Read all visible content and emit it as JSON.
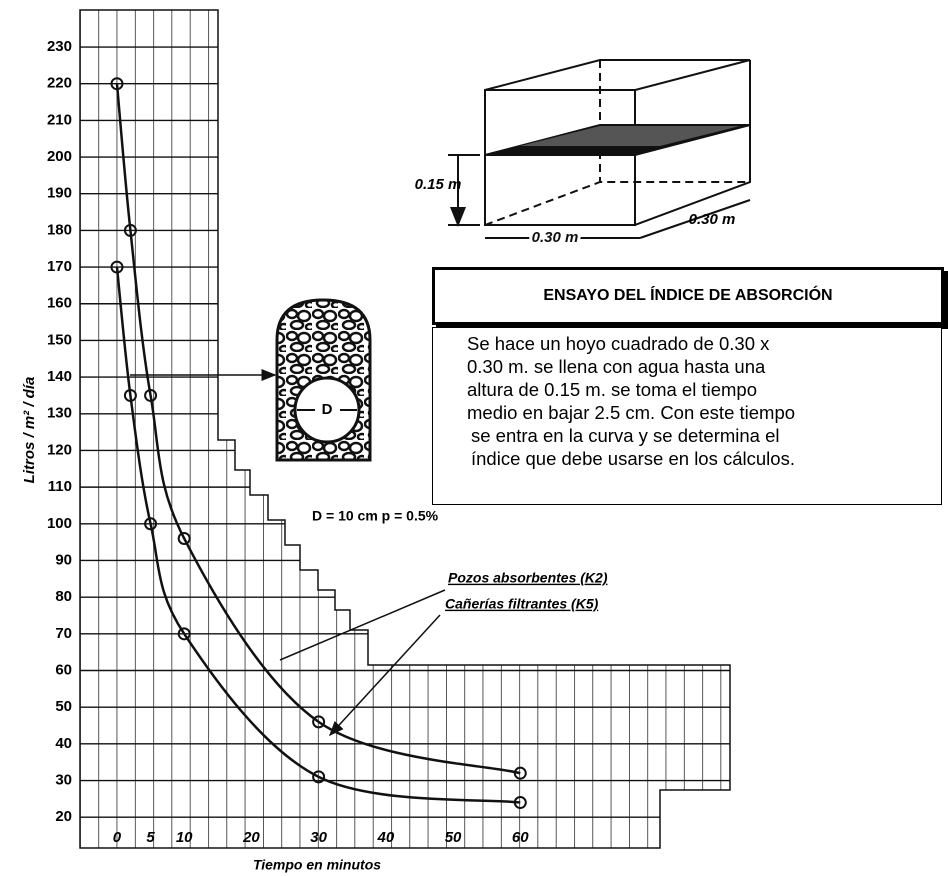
{
  "chart_data": {
    "type": "line",
    "title": "ENSAYO DEL ÍNDICE DE ABSORCIÓN",
    "description": [
      "Se hace un hoyo cuadrado de 0.30 x",
      "0.30 m. se llena con agua hasta una",
      "altura de 0.15 m. se toma el tiempo",
      "medio en bajar 2.5 cm. Con este tiempo",
      "se entra en la curva y se determina el",
      "índice que debe usarse en los cálculos."
    ],
    "x_label": "Tiempo en minutos",
    "y_label": "Litros / m² / día",
    "annotations": {
      "pipe": "D = 10 cm  p = 0.5%",
      "pipe_diameter": "D",
      "height": "0.15 m",
      "width": "0.30 m",
      "depth": "0.30 m"
    },
    "series": [
      {
        "name": "Pozos absorbentes (K2)",
        "color": "#111111",
        "x": [
          0,
          2,
          5,
          10,
          30,
          60
        ],
        "values": [
          220,
          180,
          135,
          96,
          46,
          32
        ]
      },
      {
        "name": "Cañerías filtrantes (K5)",
        "color": "#111111",
        "x": [
          0,
          2,
          5,
          10,
          30,
          60
        ],
        "values": [
          170,
          135,
          100,
          70,
          31,
          24
        ]
      }
    ],
    "xlim": [
      -5.5,
      91.2
    ],
    "ylim": [
      11.6,
      240.1
    ],
    "xticks": [
      0,
      5,
      10,
      20,
      30,
      40,
      50,
      60
    ],
    "yticks": [
      20,
      30,
      40,
      50,
      60,
      70,
      80,
      90,
      100,
      110,
      120,
      130,
      140,
      150,
      160,
      170,
      180,
      190,
      200,
      210,
      220,
      230
    ],
    "grid": true
  }
}
